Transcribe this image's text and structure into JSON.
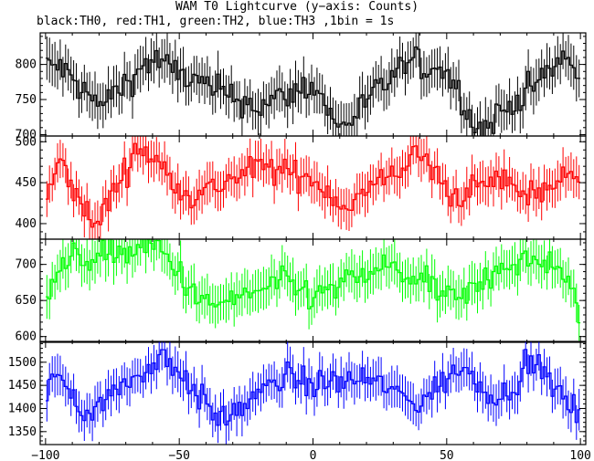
{
  "title": "WAM T0 Lightcurve (y−axis: Counts)",
  "subtitle": "black:TH0, red:TH1, green:TH2, blue:TH3 ,1bin = 1s",
  "chart_data": {
    "type": "line",
    "xlim": [
      -102,
      102
    ],
    "x_ticks": [
      -100,
      -50,
      0,
      50,
      100
    ],
    "bin_width": 1,
    "error_bars": true,
    "grid": false,
    "panels": [
      {
        "name": "TH0",
        "color": "#000000",
        "ylim": [
          698,
          845
        ],
        "y_ticks": [
          700,
          750,
          800
        ],
        "mean": 770,
        "noise": 28,
        "key_points": [
          [
            -95,
            798
          ],
          [
            -80,
            740
          ],
          [
            -60,
            808
          ],
          [
            -40,
            768
          ],
          [
            -20,
            740
          ],
          [
            0,
            772
          ],
          [
            10,
            708
          ],
          [
            35,
            802
          ],
          [
            50,
            792
          ],
          [
            62,
            705
          ],
          [
            80,
            762
          ],
          [
            95,
            812
          ],
          [
            100,
            775
          ]
        ]
      },
      {
        "name": "TH1",
        "color": "#ff0000",
        "ylim": [
          381,
          507
        ],
        "y_ticks": [
          400,
          450,
          500
        ],
        "mean": 448,
        "noise": 22,
        "key_points": [
          [
            -100,
            420
          ],
          [
            -95,
            478
          ],
          [
            -82,
            395
          ],
          [
            -65,
            495
          ],
          [
            -45,
            432
          ],
          [
            -20,
            470
          ],
          [
            0,
            455
          ],
          [
            12,
            420
          ],
          [
            40,
            486
          ],
          [
            52,
            432
          ],
          [
            70,
            455
          ],
          [
            80,
            435
          ],
          [
            100,
            462
          ]
        ]
      },
      {
        "name": "TH2",
        "color": "#00ff00",
        "ylim": [
          592,
          735
        ],
        "y_ticks": [
          600,
          650,
          700
        ],
        "mean": 663,
        "noise": 26,
        "key_points": [
          [
            -100,
            668
          ],
          [
            -92,
            705
          ],
          [
            -58,
            725
          ],
          [
            -40,
            640
          ],
          [
            -10,
            675
          ],
          [
            0,
            655
          ],
          [
            28,
            698
          ],
          [
            55,
            648
          ],
          [
            70,
            700
          ],
          [
            90,
            705
          ],
          [
            100,
            632
          ]
        ]
      },
      {
        "name": "TH3",
        "color": "#0000ff",
        "ylim": [
          1322,
          1545
        ],
        "y_ticks": [
          1350,
          1400,
          1450,
          1500
        ],
        "mean": 1440,
        "noise": 38,
        "key_points": [
          [
            -100,
            1412
          ],
          [
            -97,
            1485
          ],
          [
            -85,
            1390
          ],
          [
            -55,
            1515
          ],
          [
            -35,
            1372
          ],
          [
            -10,
            1470
          ],
          [
            0,
            1452
          ],
          [
            20,
            1465
          ],
          [
            40,
            1410
          ],
          [
            55,
            1490
          ],
          [
            70,
            1420
          ],
          [
            82,
            1502
          ],
          [
            100,
            1380
          ]
        ]
      }
    ]
  }
}
